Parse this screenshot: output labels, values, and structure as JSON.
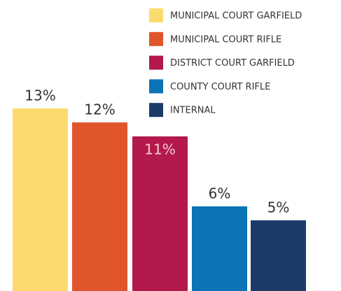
{
  "chart_data": {
    "type": "bar",
    "series": [
      {
        "name": "MUNICIPAL COURT GARFIELD",
        "color": "#fcdb6e",
        "values": [
          13
        ],
        "value_labels": [
          "13%"
        ]
      },
      {
        "name": "MUNICIPAL COURT RIFLE",
        "color": "#e0552b",
        "values": [
          12
        ],
        "value_labels": [
          "12%"
        ]
      },
      {
        "name": "DISTRICT COURT GARFIELD",
        "color": "#b3194b",
        "values": [
          11
        ],
        "value_labels": [
          "11%"
        ]
      },
      {
        "name": "COUNTY COURT RIFLE",
        "color": "#0b73b6",
        "values": [
          6
        ],
        "value_labels": [
          "6%"
        ]
      },
      {
        "name": "INTERNAL",
        "color": "#1c3b69",
        "values": [
          5
        ],
        "value_labels": [
          "5%"
        ]
      }
    ]
  }
}
